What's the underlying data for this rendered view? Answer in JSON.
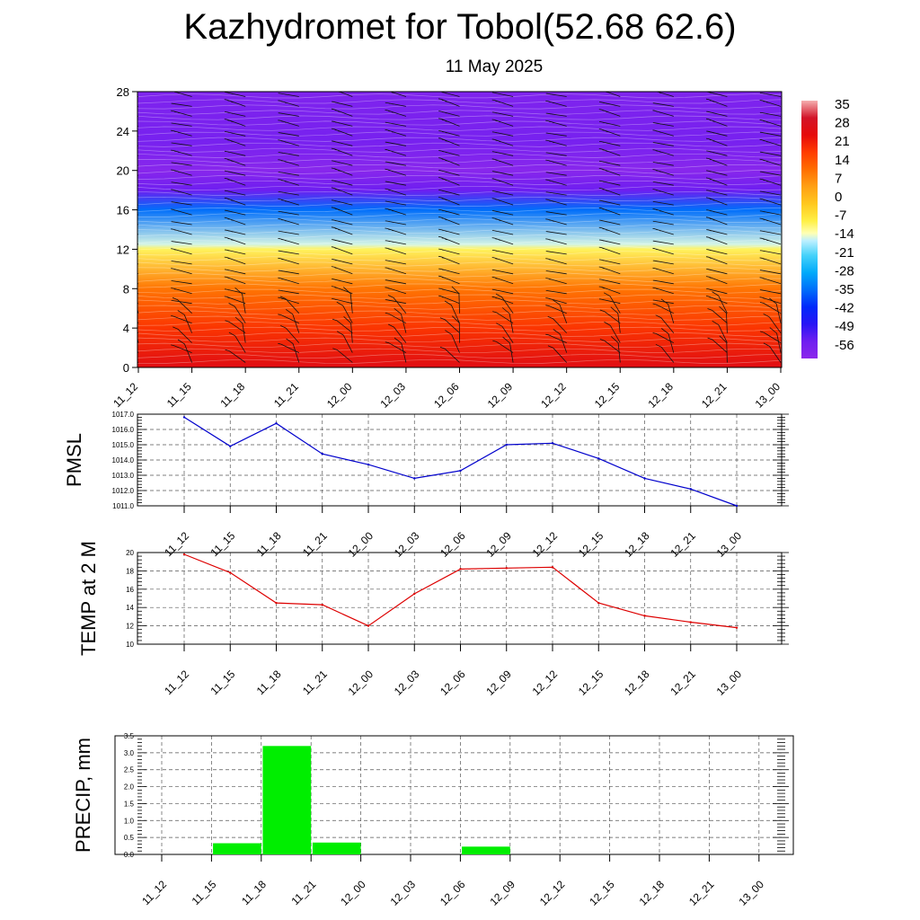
{
  "header": {
    "title": "Kazhydromet for Tobol(52.68 62.6)",
    "subtitle": "11 May 2025"
  },
  "colors": {
    "pmsl_line": "#0000cc",
    "temp_line": "#dd0000",
    "precip_bar": "#00ee00"
  },
  "chart_data": [
    {
      "type": "heatmap",
      "title": "",
      "x": [
        "11_12",
        "11_15",
        "11_18",
        "11_21",
        "12_00",
        "12_03",
        "12_06",
        "12_09",
        "12_12",
        "12_15",
        "12_18",
        "12_21",
        "13_00"
      ],
      "yticks": [
        "0",
        "4",
        "8",
        "12",
        "16",
        "20",
        "24",
        "28"
      ],
      "ylim": [
        0,
        28
      ],
      "colorbar_labels": [
        "35",
        "28",
        "21",
        "14",
        "7",
        "0",
        "-7",
        "-14",
        "-21",
        "-28",
        "-35",
        "-42",
        "-49",
        "-56"
      ],
      "colorbar_range": [
        -63,
        42
      ],
      "profile": [
        {
          "level": 0,
          "value": 30
        },
        {
          "level": 4,
          "value": 22
        },
        {
          "level": 8,
          "value": 13
        },
        {
          "level": 12,
          "value": -8
        },
        {
          "level": 12.5,
          "value": -14
        },
        {
          "level": 16,
          "value": -35
        },
        {
          "level": 18,
          "value": -56
        },
        {
          "level": 20,
          "value": -62
        },
        {
          "level": 23,
          "value": -58
        },
        {
          "level": 28,
          "value": -60
        }
      ],
      "overlay": "wind barbs"
    },
    {
      "type": "line",
      "ylabel": "PMSL",
      "categories": [
        "11_12",
        "11_15",
        "11_18",
        "11_21",
        "12_00",
        "12_03",
        "12_06",
        "12_09",
        "12_12",
        "12_15",
        "12_18",
        "12_21",
        "13_00"
      ],
      "values": [
        1016.8,
        1014.9,
        1016.4,
        1014.4,
        1013.7,
        1012.8,
        1013.3,
        1015.0,
        1015.1,
        1014.1,
        1012.8,
        1012.1,
        1011.0
      ],
      "ylim": [
        1011.0,
        1017.0
      ],
      "yticks": [
        "1011.0",
        "1012.0",
        "1013.0",
        "1014.0",
        "1015.0",
        "1016.0",
        "1017.0"
      ],
      "grid": true
    },
    {
      "type": "line",
      "ylabel": "TEMP at 2 M",
      "categories": [
        "11_12",
        "11_15",
        "11_18",
        "11_21",
        "12_00",
        "12_03",
        "12_06",
        "12_09",
        "12_12",
        "12_15",
        "12_18",
        "12_21",
        "13_00"
      ],
      "values": [
        19.8,
        17.8,
        14.5,
        14.3,
        12.0,
        15.5,
        18.2,
        18.3,
        18.4,
        14.5,
        13.1,
        12.4,
        11.8
      ],
      "ylim": [
        10,
        20
      ],
      "yticks": [
        "10",
        "12",
        "14",
        "16",
        "18",
        "20"
      ],
      "grid": true
    },
    {
      "type": "bar",
      "ylabel": "PRECIP, mm",
      "categories": [
        "11_12",
        "11_15",
        "11_18",
        "11_21",
        "12_00",
        "12_03",
        "12_06",
        "12_09",
        "12_12",
        "12_15",
        "12_18",
        "12_21",
        "13_00"
      ],
      "values": [
        0,
        0,
        0.33,
        3.2,
        0.35,
        0,
        0,
        0.23,
        0,
        0,
        0,
        0,
        0
      ],
      "ylim": [
        0,
        3.5
      ],
      "yticks": [
        "0.0",
        "0.5",
        "1.0",
        "1.5",
        "2.0",
        "2.5",
        "3.0",
        "3.5"
      ],
      "grid": true
    }
  ]
}
